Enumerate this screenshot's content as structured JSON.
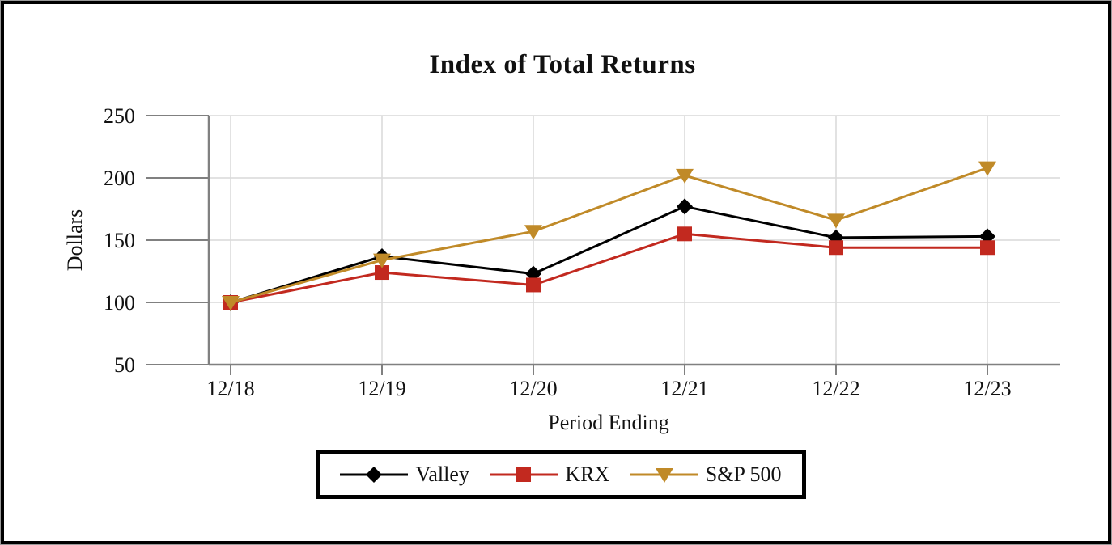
{
  "chart_data": {
    "type": "line",
    "title": "Index of Total Returns",
    "xlabel": "Period Ending",
    "ylabel": "Dollars",
    "categories": [
      "12/18",
      "12/19",
      "12/20",
      "12/21",
      "12/22",
      "12/23"
    ],
    "series": [
      {
        "name": "Valley",
        "marker": "diamond",
        "color": "#000000",
        "values": [
          100,
          137,
          123,
          177,
          152,
          153
        ]
      },
      {
        "name": "KRX",
        "marker": "square",
        "color": "#C2291F",
        "values": [
          100,
          124,
          114,
          155,
          144,
          144
        ]
      },
      {
        "name": "S&P 500",
        "marker": "triangle-down",
        "color": "#C08A28",
        "values": [
          100,
          134,
          157,
          202,
          166,
          208
        ]
      }
    ],
    "ylim": [
      50,
      250
    ],
    "yticks": [
      50,
      100,
      150,
      200,
      250
    ],
    "grid": true,
    "legend_position": "bottom",
    "axis_color": "#808080",
    "gridline_color": "#D9D9D9",
    "frame_border_color": "#000000"
  }
}
